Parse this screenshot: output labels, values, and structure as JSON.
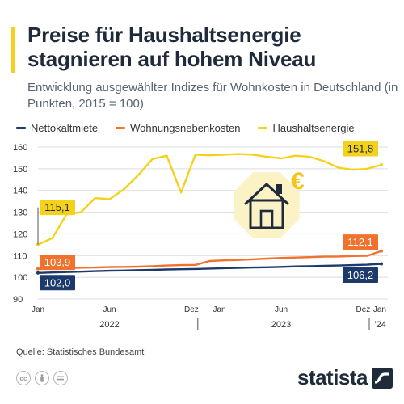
{
  "header": {
    "title": "Preise für Haushaltsenergie stagnieren auf hohem Niveau",
    "subtitle": "Entwicklung ausgewählter Indizes für Wohnkosten in Deutschland (in Punkten, 2015 = 100)"
  },
  "footer": {
    "source": "Quelle: Statistisches Bundesamt",
    "brand": "statista",
    "license_icons": [
      "cc-icon",
      "by-icon",
      "nd-icon"
    ]
  },
  "colors": {
    "nettokaltmiete": "#1c3a6b",
    "wohnungsnebenkosten": "#f0722d",
    "haushaltsenergie": "#f4d21c",
    "grid": "#dadde2",
    "axis_text": "#333333",
    "house_badge": "#fbf2c6",
    "euro": "#f4c417"
  },
  "illustration": {
    "house_icon": "house-icon",
    "euro_label": "€"
  },
  "chart_data": {
    "type": "line",
    "x": [
      "2022-01",
      "2022-02",
      "2022-03",
      "2022-04",
      "2022-05",
      "2022-06",
      "2022-07",
      "2022-08",
      "2022-09",
      "2022-10",
      "2022-11",
      "2022-12",
      "2023-01",
      "2023-02",
      "2023-03",
      "2023-04",
      "2023-05",
      "2023-06",
      "2023-07",
      "2023-08",
      "2023-09",
      "2023-10",
      "2023-11",
      "2023-12",
      "2024-01"
    ],
    "x_ticks": [
      {
        "x": "2022-01",
        "label": "Jan"
      },
      {
        "x": "2022-06",
        "label": "Jun"
      },
      {
        "x": "2022-12",
        "label": "Dez"
      },
      {
        "x": "2023-01",
        "label": "Jan"
      },
      {
        "x": "2023-06",
        "label": "Jun"
      },
      {
        "x": "2023-12",
        "label": "Dez"
      },
      {
        "x": "2024-01",
        "label": "Jan"
      }
    ],
    "year_labels": [
      {
        "x": "2022-06",
        "label": "2022"
      },
      {
        "x": "2023-06",
        "label": "2023"
      },
      {
        "x": "2024-01",
        "label": "'24"
      }
    ],
    "year_separators": [
      "2022-12",
      "2024-01"
    ],
    "ylim": [
      90,
      160
    ],
    "yticks": [
      90,
      100,
      110,
      120,
      130,
      140,
      150,
      160
    ],
    "grid": true,
    "legend_position": "top",
    "series": [
      {
        "name": "Nettokaltmiete",
        "color_key": "nettokaltmiete",
        "values": [
          102.0,
          102.2,
          102.4,
          102.6,
          102.8,
          103.0,
          103.1,
          103.3,
          103.4,
          103.6,
          103.7,
          103.8,
          104.0,
          104.2,
          104.3,
          104.5,
          104.6,
          104.8,
          105.0,
          105.1,
          105.3,
          105.4,
          105.6,
          105.8,
          106.2
        ],
        "start_label": "102,0",
        "end_label": "106,2"
      },
      {
        "name": "Wohnungsnebenkosten",
        "color_key": "wohnungsnebenkosten",
        "values": [
          103.9,
          104.0,
          104.2,
          104.4,
          104.5,
          104.7,
          104.8,
          104.9,
          105.1,
          105.4,
          105.6,
          105.7,
          107.5,
          107.8,
          108.0,
          108.3,
          108.6,
          108.9,
          109.1,
          109.3,
          109.5,
          109.6,
          109.8,
          109.9,
          112.1
        ],
        "start_label": "103,9",
        "end_label": "112,1"
      },
      {
        "name": "Haushaltsenergie",
        "color_key": "haushaltsenergie",
        "values": [
          115.1,
          118.0,
          129.0,
          130.0,
          136.5,
          136.0,
          140.5,
          147.0,
          154.5,
          156.0,
          139.0,
          156.5,
          156.2,
          156.5,
          156.8,
          156.5,
          155.5,
          154.8,
          156.0,
          155.5,
          153.5,
          150.5,
          149.5,
          150.0,
          151.8
        ],
        "start_label": "115,1",
        "end_label": "151,8"
      }
    ]
  }
}
